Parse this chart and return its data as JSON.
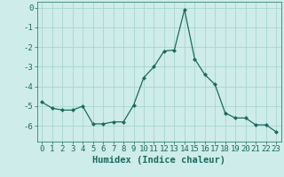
{
  "x": [
    0,
    1,
    2,
    3,
    4,
    5,
    6,
    7,
    8,
    9,
    10,
    11,
    12,
    13,
    14,
    15,
    16,
    17,
    18,
    19,
    20,
    21,
    22,
    23
  ],
  "y": [
    -4.8,
    -5.1,
    -5.2,
    -5.2,
    -5.0,
    -5.9,
    -5.9,
    -5.8,
    -5.8,
    -4.95,
    -3.55,
    -3.0,
    -2.2,
    -2.15,
    -0.1,
    -2.6,
    -3.4,
    -3.9,
    -5.35,
    -5.6,
    -5.6,
    -5.95,
    -5.95,
    -6.3
  ],
  "line_color": "#1a6b5e",
  "marker": "D",
  "marker_size": 2.0,
  "bg_color": "#ceecea",
  "grid_color": "#a8d5d2",
  "tick_color": "#1a6b5e",
  "xlabel": "Humidex (Indice chaleur)",
  "xlim": [
    -0.5,
    23.5
  ],
  "ylim": [
    -6.8,
    0.3
  ],
  "yticks": [
    0,
    -1,
    -2,
    -3,
    -4,
    -5,
    -6
  ],
  "xticks": [
    0,
    1,
    2,
    3,
    4,
    5,
    6,
    7,
    8,
    9,
    10,
    11,
    12,
    13,
    14,
    15,
    16,
    17,
    18,
    19,
    20,
    21,
    22,
    23
  ],
  "xlabel_fontsize": 7.5,
  "tick_fontsize": 6.5
}
